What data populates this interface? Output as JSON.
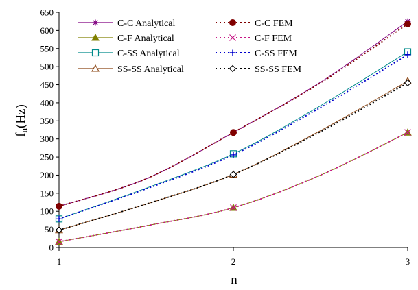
{
  "chart_data": {
    "type": "line",
    "title": "",
    "xlabel": "n",
    "ylabel_main": "f",
    "ylabel_sub": "n",
    "ylabel_unit": "(Hz)",
    "x": [
      1,
      2,
      3
    ],
    "x_ticks": [
      1,
      2,
      3
    ],
    "xlim": [
      1,
      3
    ],
    "ylim": [
      0,
      650
    ],
    "y_ticks": [
      0,
      50,
      100,
      150,
      200,
      250,
      300,
      350,
      400,
      450,
      500,
      550,
      600,
      650
    ],
    "grid": false,
    "legend_position": "top-left",
    "series": [
      {
        "name": "C-C Analytical",
        "values": [
          114,
          318,
          625
        ],
        "color": "#800080",
        "dash": "solid",
        "marker": "star",
        "midpoints": [
          190,
          457
        ]
      },
      {
        "name": "C-C FEM",
        "values": [
          114,
          318,
          618
        ],
        "color": "#800000",
        "dash": "dot",
        "marker": "filled-circle",
        "midpoints": [
          190,
          455
        ]
      },
      {
        "name": "C-F Analytical",
        "values": [
          16,
          110,
          318
        ],
        "color": "#808000",
        "dash": "solid",
        "marker": "filled-triangle",
        "midpoints": [
          60,
          200
        ]
      },
      {
        "name": "C-F FEM",
        "values": [
          16,
          110,
          318
        ],
        "color": "#c71585",
        "dash": "dot",
        "marker": "x",
        "midpoints": [
          60,
          200
        ]
      },
      {
        "name": "C-SS Analytical",
        "values": [
          79,
          259,
          541
        ],
        "color": "#008b8b",
        "dash": "solid",
        "marker": "open-square",
        "midpoints": [
          164,
          392
        ]
      },
      {
        "name": "C-SS FEM",
        "values": [
          79,
          256,
          533
        ],
        "color": "#0000cd",
        "dash": "dot",
        "marker": "plus",
        "midpoints": [
          162,
          387
        ]
      },
      {
        "name": "SS-SS Analytical",
        "values": [
          48,
          202,
          460
        ],
        "color": "#8b4513",
        "dash": "solid",
        "marker": "open-triangle",
        "midpoints": [
          120,
          323
        ]
      },
      {
        "name": "SS-SS FEM",
        "values": [
          48,
          202,
          455
        ],
        "color": "#000000",
        "dash": "dot",
        "marker": "open-diamond",
        "midpoints": [
          120,
          320
        ]
      }
    ]
  }
}
